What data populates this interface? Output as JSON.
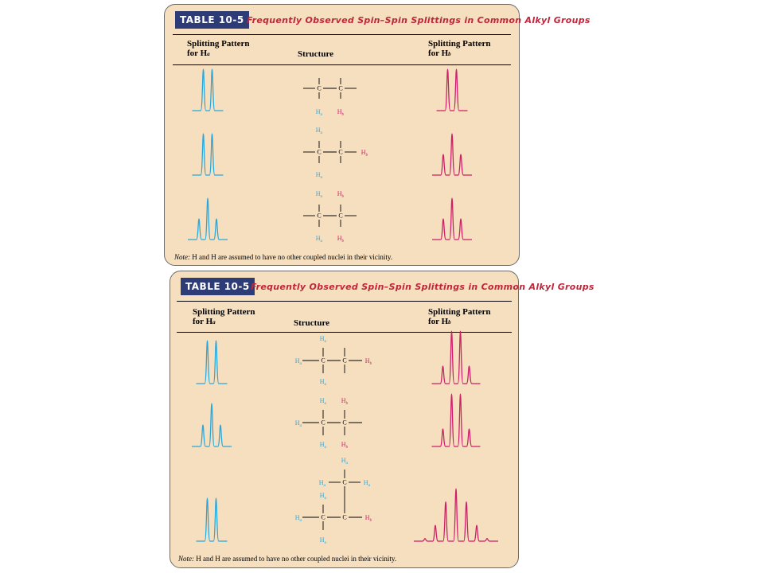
{
  "colors": {
    "card_bg": "#f6dfbf",
    "ha_color": "#2aa7dc",
    "hb_color": "#cd1f6a",
    "tag_bg": "#2d3b76",
    "title_red": "#c0263b"
  },
  "tables": [
    {
      "tag": "TABLE 10-5",
      "title": "Frequently Observed Spin–Spin Splittings in Common Alkyl Groups",
      "col_a_line1": "Splitting Pattern",
      "col_a_line2": "for H",
      "col_a_sub": "a",
      "col_s": "Structure",
      "col_b_line1": "Splitting Pattern",
      "col_b_line2": "for H",
      "col_b_sub": "b",
      "note_prefix": "Note:",
      "note_text": "H and H are assumed to have no other coupled nuclei in their vicinity.",
      "rows": [
        {
          "structure": "Ha–C–C–Hb",
          "pattern_a": "doublet",
          "peaks_a": [
            1,
            1
          ],
          "pattern_b": "doublet",
          "peaks_b": [
            1,
            1
          ]
        },
        {
          "structure": "(Ha)2C–C–Hb",
          "pattern_a": "doublet",
          "peaks_a": [
            1,
            1
          ],
          "pattern_b": "triplet",
          "peaks_b": [
            1,
            2,
            1
          ]
        },
        {
          "structure": "(Ha)2C–C(Hb)2",
          "pattern_a": "triplet",
          "peaks_a": [
            1,
            2,
            1
          ],
          "pattern_b": "triplet",
          "peaks_b": [
            1,
            2,
            1
          ]
        }
      ]
    },
    {
      "tag": "TABLE 10-5",
      "title": "Frequently Observed Spin–Spin Splittings in Common Alkyl Groups",
      "col_a_line1": "Splitting Pattern",
      "col_a_line2": "for H",
      "col_a_sub": "a",
      "col_s": "Structure",
      "col_b_line1": "Splitting Pattern",
      "col_b_line2": "for H",
      "col_b_sub": "b",
      "note_prefix": "Note:",
      "note_text": "H and H are assumed to have no other coupled nuclei in their vicinity.",
      "rows": [
        {
          "structure": "(Ha)3C–C–Hb",
          "pattern_a": "doublet",
          "peaks_a": [
            1,
            1
          ],
          "pattern_b": "quartet",
          "peaks_b": [
            1,
            3,
            3,
            1
          ]
        },
        {
          "structure": "(Ha)3C–C(Hb)2",
          "pattern_a": "triplet",
          "peaks_a": [
            1,
            2,
            1
          ],
          "pattern_b": "quartet",
          "peaks_b": [
            1,
            3,
            3,
            1
          ]
        },
        {
          "structure": "(Ha)3C–CHb–C(Ha)3",
          "pattern_a": "doublet",
          "peaks_a": [
            1,
            1
          ],
          "pattern_b": "septet",
          "peaks_b": [
            1,
            6,
            15,
            20,
            15,
            6,
            1
          ]
        }
      ]
    }
  ],
  "atom_labels": {
    "carbon": "C",
    "h": "H",
    "a": "a",
    "b": "b"
  }
}
